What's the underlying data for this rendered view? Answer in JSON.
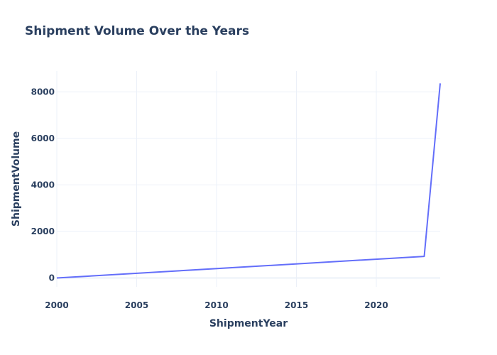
{
  "chart_data": {
    "type": "line",
    "title": "Shipment Volume Over the Years",
    "xlabel": "ShipmentYear",
    "ylabel": "ShipmentVolume",
    "x": [
      2000,
      2023,
      2024
    ],
    "series": [
      {
        "values": [
          0,
          930,
          8370
        ]
      }
    ],
    "xlim": [
      2000,
      2024
    ],
    "ylim": [
      -380,
      8900
    ],
    "xticks": [
      2000,
      2005,
      2010,
      2015,
      2020
    ],
    "yticks": [
      0,
      2000,
      4000,
      6000,
      8000
    ],
    "xtick_labels": [
      "2000",
      "2005",
      "2010",
      "2015",
      "2020"
    ],
    "ytick_labels": [
      "0",
      "2000",
      "4000",
      "6000",
      "8000"
    ],
    "grid": true,
    "colors": {
      "line": "#636efa",
      "grid": "#ebf0f8",
      "text": "#2a3f5f"
    }
  }
}
